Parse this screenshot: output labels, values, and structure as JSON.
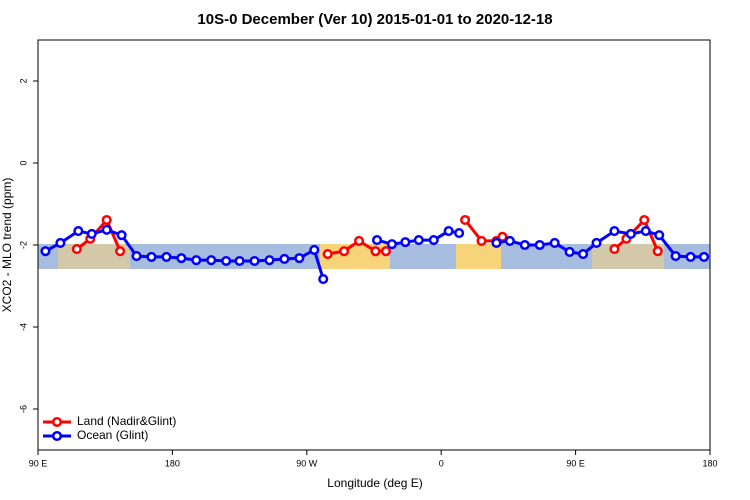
{
  "chart_data": {
    "type": "line",
    "title": "10S-0 December (Ver 10)   2015-01-01 to 2020-12-18",
    "x_label": "Longitude (deg E)",
    "y_label": "XCO2 - MLO trend (ppm)",
    "xlim": [
      90,
      540
    ],
    "xticks": [
      {
        "value": 90,
        "label": "90 E"
      },
      180,
      {
        "value": 270,
        "label": "90 W"
      },
      {
        "value": 360,
        "label": "0"
      },
      {
        "value": 450,
        "label": "90 E"
      },
      {
        "value": 540,
        "label": "180"
      }
    ],
    "ylim": [
      -7,
      3
    ],
    "yticks": [
      -6,
      -4,
      -2,
      0,
      2
    ],
    "legend": "bottom-left",
    "series": [
      {
        "name": "Land (Nadir&Glint)",
        "color": "#ff0000",
        "x": [
          116,
          125,
          136,
          145,
          null,
          284,
          295,
          305,
          316,
          323,
          null,
          376,
          387,
          397,
          401,
          null,
          476,
          484,
          496,
          505
        ],
        "values": [
          -2.1,
          -1.85,
          -1.39,
          -2.15,
          null,
          -2.22,
          -2.15,
          -1.9,
          -2.15,
          -2.15,
          null,
          -1.39,
          -1.9,
          -1.9,
          -1.8,
          null,
          -2.1,
          -1.85,
          -1.39,
          -2.15
        ]
      },
      {
        "name": "Ocean (Glint)",
        "color": "#0000ff",
        "x": [
          95,
          105,
          117,
          126,
          136,
          146,
          156,
          166,
          176,
          186,
          196,
          206,
          216,
          225,
          235,
          245,
          255,
          265,
          275,
          281,
          null,
          317,
          327,
          336,
          345,
          355,
          365,
          372,
          null,
          397,
          406,
          416,
          426,
          436,
          446,
          455,
          464,
          476,
          487,
          497,
          506,
          517,
          527,
          536
        ],
        "values": [
          -2.15,
          -1.95,
          -1.66,
          -1.73,
          -1.63,
          -1.76,
          -2.27,
          -2.29,
          -2.29,
          -2.32,
          -2.37,
          -2.37,
          -2.39,
          -2.39,
          -2.39,
          -2.37,
          -2.34,
          -2.32,
          -2.12,
          -2.83,
          null,
          -1.88,
          -1.98,
          -1.93,
          -1.88,
          -1.88,
          -1.66,
          -1.71,
          null,
          -1.95,
          -1.9,
          -2.0,
          -2.0,
          -1.95,
          -2.17,
          -2.22,
          -1.95,
          -1.66,
          -1.73,
          -1.66,
          -1.76,
          -2.27,
          -2.29,
          -2.29
        ]
      }
    ]
  }
}
